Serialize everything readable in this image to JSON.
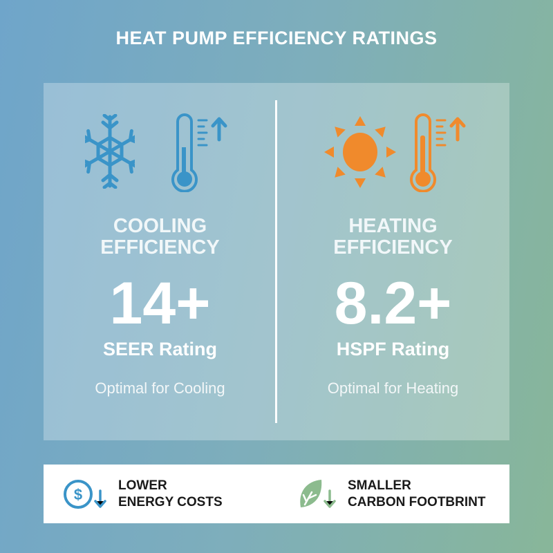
{
  "title": "HEAT PUMP EFFICIENCY RATINGS",
  "colors": {
    "cooling": "#3a94c8",
    "heating": "#f08a2c",
    "leaf": "#8cbb8e"
  },
  "cooling": {
    "icons": [
      "snowflake-icon",
      "thermometer-up-icon"
    ],
    "heading_line1": "COOLING",
    "heading_line2": "EFFICIENCY",
    "value": "14+",
    "rating": "SEER Rating",
    "note": "Optimal for Cooling"
  },
  "heating": {
    "icons": [
      "sun-icon",
      "thermometer-up-icon"
    ],
    "heading_line1": "HEATING",
    "heading_line2": "EFFICIENCY",
    "value": "8.2+",
    "rating": "HSPF Rating",
    "note": "Optimal for Heating"
  },
  "benefits": [
    {
      "icon": "dollar-down-icon",
      "line1": "LOWER",
      "line2": "ENERGY COSTS"
    },
    {
      "icon": "leaf-down-icon",
      "line1": "SMALLER",
      "line2": "CARBON FOOTBRINT"
    }
  ]
}
